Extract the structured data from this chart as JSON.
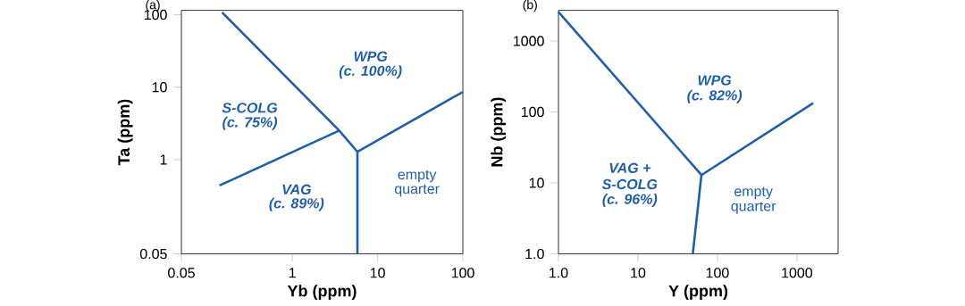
{
  "chart_data": [
    {
      "type": "line",
      "title": "(a)",
      "xlabel": "Yb (ppm)",
      "ylabel": "Ta (ppm)",
      "log": "xy",
      "marker": "none",
      "line_style": "solid",
      "grid": false,
      "xlim": [
        0.05,
        100
      ],
      "ylim": [
        0.05,
        115
      ],
      "xticks": [
        0.05,
        1,
        10,
        100
      ],
      "yticks": [
        0.05,
        1,
        10,
        100
      ],
      "series": [
        {
          "color": "#1f5fa8",
          "x": [
            0.15,
            3.55,
            5.8
          ],
          "values": [
            108,
            2.52,
            1.28
          ]
        },
        {
          "color": "#1f5fa8",
          "x": [
            0.14,
            3.55
          ],
          "values": [
            0.44,
            2.52
          ]
        },
        {
          "color": "#1f5fa8",
          "x": [
            5.8,
            100
          ],
          "values": [
            1.28,
            8.6
          ]
        },
        {
          "color": "#1f5fa8",
          "x": [
            5.8,
            5.8
          ],
          "values": [
            1.28,
            0.05
          ]
        }
      ],
      "annotations": [
        "WPG",
        "(c. 100%)",
        "S-COLG",
        "(c. 75%)",
        "VAG",
        "(c. 89%)",
        "empty",
        "quarter"
      ]
    },
    {
      "type": "line",
      "title": "(b)",
      "xlabel": "Y (ppm)",
      "ylabel": "Nb (ppm)",
      "log": "xy",
      "marker": "none",
      "line_style": "solid",
      "grid": false,
      "xlim": [
        1,
        3300
      ],
      "ylim": [
        1,
        2700
      ],
      "xticks": [
        {
          "value": 1,
          "label": "1.0"
        },
        10,
        100,
        1000
      ],
      "yticks": [
        {
          "value": 1,
          "label": "1.0"
        },
        10,
        100,
        1000
      ],
      "series": [
        {
          "color": "#1f5fa8",
          "x": [
            1,
            63
          ],
          "values": [
            2570,
            12.9
          ]
        },
        {
          "color": "#1f5fa8",
          "x": [
            63,
            1600
          ],
          "values": [
            12.9,
            133
          ]
        },
        {
          "color": "#1f5fa8",
          "x": [
            63,
            49
          ],
          "values": [
            12.9,
            1
          ]
        }
      ],
      "annotations": [
        "WPG",
        "(c. 82%)",
        "VAG +",
        "S-COLG",
        "(c. 96%)",
        "empty",
        "quarter"
      ]
    }
  ]
}
